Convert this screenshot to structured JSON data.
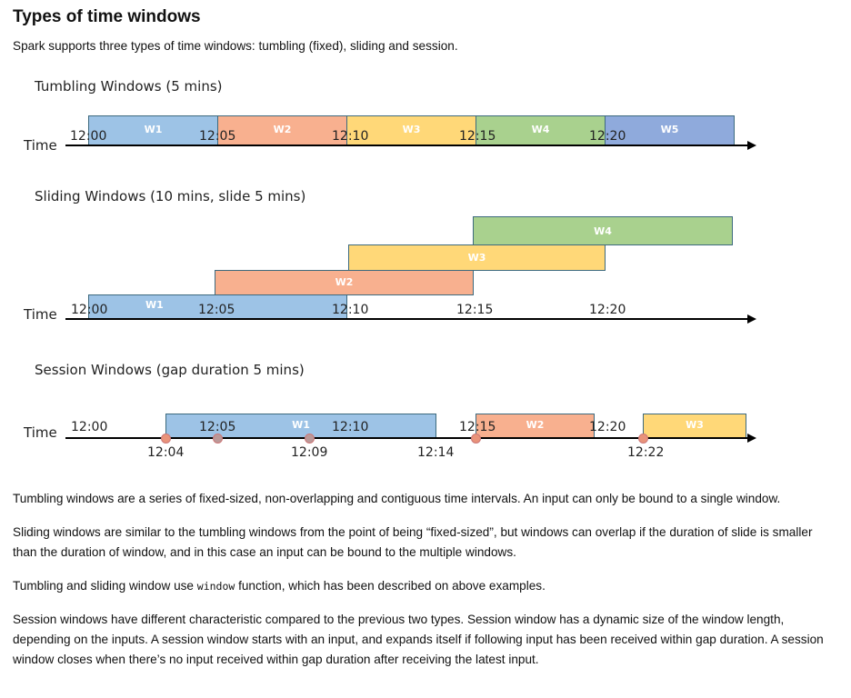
{
  "heading": "Types of time windows",
  "intro": "Spark supports three types of time windows: tumbling (fixed), sliding and session.",
  "diagram": {
    "axis_label": "Time",
    "colors": {
      "w1": "#9dc3e6",
      "w2": "#f8b08f",
      "w3": "#ffd878",
      "w4": "#a9d18e",
      "w5": "#8faadc"
    },
    "tumbling": {
      "title": "Tumbling Windows (5 mins)",
      "windows": [
        "W1",
        "W2",
        "W3",
        "W4",
        "W5"
      ],
      "ticks": [
        "12:00",
        "12:05",
        "12:10",
        "12:15",
        "12:20"
      ]
    },
    "sliding": {
      "title": "Sliding Windows (10 mins, slide 5 mins)",
      "windows": [
        "W1",
        "W2",
        "W3",
        "W4"
      ],
      "ticks": [
        "12:00",
        "12:05",
        "12:10",
        "12:15",
        "12:20"
      ]
    },
    "session": {
      "title": "Session Windows (gap duration 5 mins)",
      "windows": [
        "W1",
        "W2",
        "W3"
      ],
      "ticks": [
        "12:00",
        "12:05",
        "12:10",
        "12:15",
        "12:20"
      ],
      "events": [
        "12:04",
        "12:09",
        "12:14",
        "12:22"
      ]
    }
  },
  "paragraphs": [
    "Tumbling windows are a series of fixed-sized, non-overlapping and contiguous time intervals. An input can only be bound to a single window.",
    "Sliding windows are similar to the tumbling windows from the point of being “fixed-sized”, but windows can overlap if the duration of slide is smaller than the duration of window, and in this case an input can be bound to the multiple windows.",
    "Session windows have different characteristic compared to the previous two types. Session window has a dynamic size of the window length, depending on the inputs. A session window starts with an input, and expands itself if following input has been received within gap duration. A session window closes when there’s no input received within gap duration after receiving the latest input."
  ],
  "window_para": {
    "before": "Tumbling and sliding window use ",
    "code": "window",
    "after": " function, which has been described on above examples."
  }
}
